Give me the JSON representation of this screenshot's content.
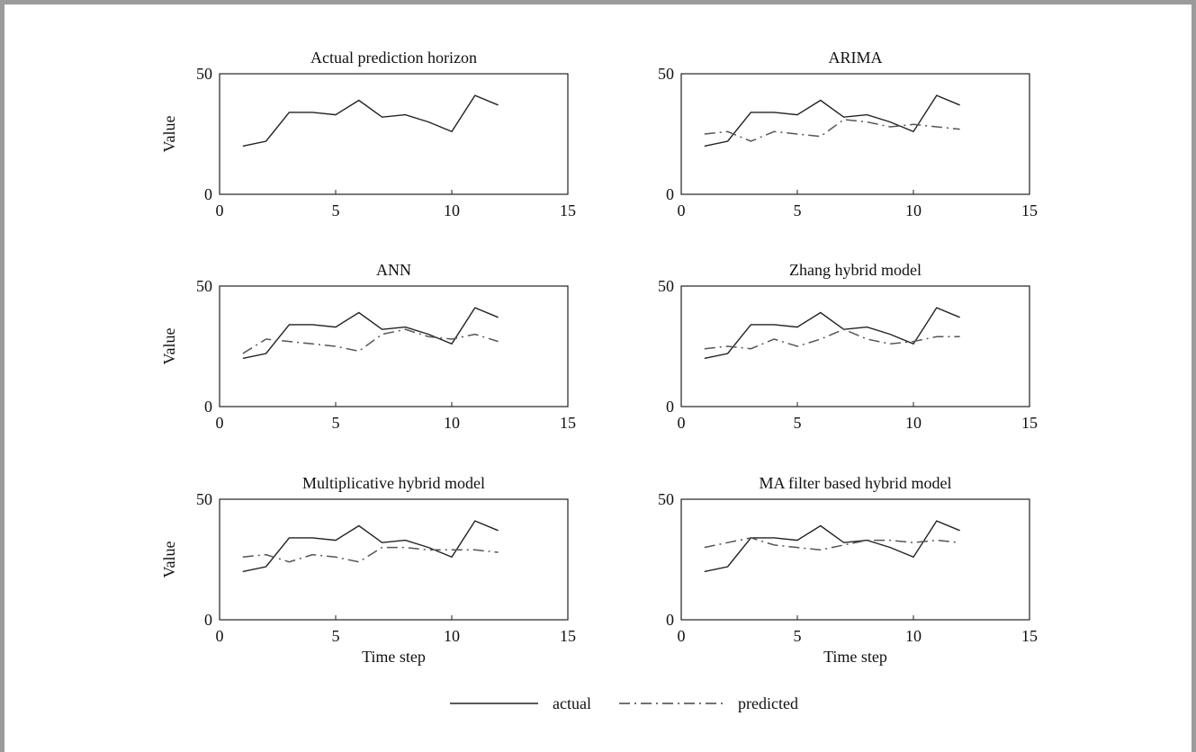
{
  "chart_data": {
    "layout": "3x2 grid of line charts",
    "legend": {
      "placement": "bottom-center",
      "entries": [
        {
          "label": "actual",
          "style": "solid"
        },
        {
          "label": "predicted",
          "style": "dash-dot"
        }
      ]
    },
    "panels": [
      {
        "type": "line",
        "title": "Actual prediction horizon",
        "ylabel": "Value",
        "xlabel": "",
        "xlim": [
          0,
          15
        ],
        "ylim": [
          0,
          50
        ],
        "xticks": [
          0,
          5,
          10,
          15
        ],
        "yticks": [
          0,
          50
        ],
        "series": [
          {
            "name": "actual",
            "x": [
              1,
              2,
              3,
              4,
              5,
              6,
              7,
              8,
              9,
              10,
              11,
              12
            ],
            "y": [
              20,
              22,
              34,
              34,
              33,
              39,
              32,
              33,
              30,
              26,
              41,
              37
            ]
          }
        ]
      },
      {
        "type": "line",
        "title": "ARIMA",
        "ylabel": "",
        "xlabel": "",
        "xlim": [
          0,
          15
        ],
        "ylim": [
          0,
          50
        ],
        "xticks": [
          0,
          5,
          10,
          15
        ],
        "yticks": [
          0,
          50
        ],
        "series": [
          {
            "name": "actual",
            "x": [
              1,
              2,
              3,
              4,
              5,
              6,
              7,
              8,
              9,
              10,
              11,
              12
            ],
            "y": [
              20,
              22,
              34,
              34,
              33,
              39,
              32,
              33,
              30,
              26,
              41,
              37
            ]
          },
          {
            "name": "predicted",
            "x": [
              1,
              2,
              3,
              4,
              5,
              6,
              7,
              8,
              9,
              10,
              11,
              12
            ],
            "y": [
              25,
              26,
              22,
              26,
              25,
              24,
              31,
              30,
              28,
              29,
              28,
              27
            ]
          }
        ]
      },
      {
        "type": "line",
        "title": "ANN",
        "ylabel": "Value",
        "xlabel": "",
        "xlim": [
          0,
          15
        ],
        "ylim": [
          0,
          50
        ],
        "xticks": [
          0,
          5,
          10,
          15
        ],
        "yticks": [
          0,
          50
        ],
        "series": [
          {
            "name": "actual",
            "x": [
              1,
              2,
              3,
              4,
              5,
              6,
              7,
              8,
              9,
              10,
              11,
              12
            ],
            "y": [
              20,
              22,
              34,
              34,
              33,
              39,
              32,
              33,
              30,
              26,
              41,
              37
            ]
          },
          {
            "name": "predicted",
            "x": [
              1,
              2,
              3,
              4,
              5,
              6,
              7,
              8,
              9,
              10,
              11,
              12
            ],
            "y": [
              22,
              28,
              27,
              26,
              25,
              23,
              30,
              32,
              29,
              28,
              30,
              27
            ]
          }
        ]
      },
      {
        "type": "line",
        "title": "Zhang hybrid model",
        "ylabel": "",
        "xlabel": "",
        "xlim": [
          0,
          15
        ],
        "ylim": [
          0,
          50
        ],
        "xticks": [
          0,
          5,
          10,
          15
        ],
        "yticks": [
          0,
          50
        ],
        "series": [
          {
            "name": "actual",
            "x": [
              1,
              2,
              3,
              4,
              5,
              6,
              7,
              8,
              9,
              10,
              11,
              12
            ],
            "y": [
              20,
              22,
              34,
              34,
              33,
              39,
              32,
              33,
              30,
              26,
              41,
              37
            ]
          },
          {
            "name": "predicted",
            "x": [
              1,
              2,
              3,
              4,
              5,
              6,
              7,
              8,
              9,
              10,
              11,
              12
            ],
            "y": [
              24,
              25,
              24,
              28,
              25,
              28,
              32,
              28,
              26,
              27,
              29,
              29
            ]
          }
        ]
      },
      {
        "type": "line",
        "title": "Multiplicative hybrid model",
        "ylabel": "Value",
        "xlabel": "Time step",
        "xlim": [
          0,
          15
        ],
        "ylim": [
          0,
          50
        ],
        "xticks": [
          0,
          5,
          10,
          15
        ],
        "yticks": [
          0,
          50
        ],
        "series": [
          {
            "name": "actual",
            "x": [
              1,
              2,
              3,
              4,
              5,
              6,
              7,
              8,
              9,
              10,
              11,
              12
            ],
            "y": [
              20,
              22,
              34,
              34,
              33,
              39,
              32,
              33,
              30,
              26,
              41,
              37
            ]
          },
          {
            "name": "predicted",
            "x": [
              1,
              2,
              3,
              4,
              5,
              6,
              7,
              8,
              9,
              10,
              11,
              12
            ],
            "y": [
              26,
              27,
              24,
              27,
              26,
              24,
              30,
              30,
              29,
              29,
              29,
              28
            ]
          }
        ]
      },
      {
        "type": "line",
        "title": "MA filter based hybrid model",
        "ylabel": "",
        "xlabel": "Time step",
        "xlim": [
          0,
          15
        ],
        "ylim": [
          0,
          50
        ],
        "xticks": [
          0,
          5,
          10,
          15
        ],
        "yticks": [
          0,
          50
        ],
        "series": [
          {
            "name": "actual",
            "x": [
              1,
              2,
              3,
              4,
              5,
              6,
              7,
              8,
              9,
              10,
              11,
              12
            ],
            "y": [
              20,
              22,
              34,
              34,
              33,
              39,
              32,
              33,
              30,
              26,
              41,
              37
            ]
          },
          {
            "name": "predicted",
            "x": [
              1,
              2,
              3,
              4,
              5,
              6,
              7,
              8,
              9,
              10,
              11,
              12
            ],
            "y": [
              30,
              32,
              34,
              31,
              30,
              29,
              31,
              33,
              33,
              32,
              33,
              32
            ]
          }
        ]
      }
    ]
  }
}
